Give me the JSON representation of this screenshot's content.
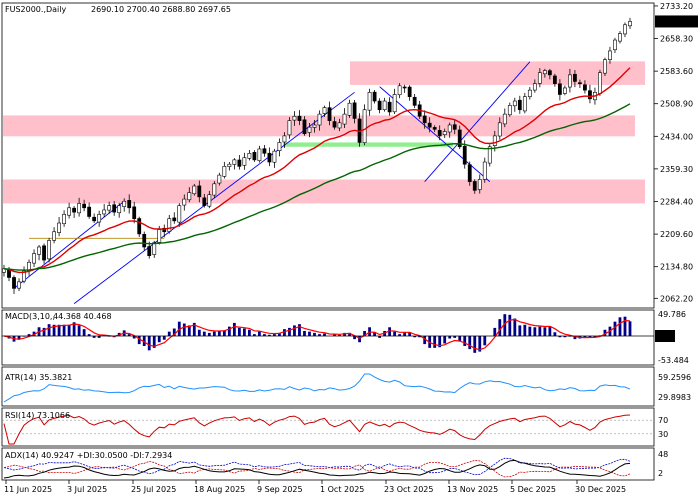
{
  "header": {
    "symbol": "FUS2000.,Daily",
    "ohlc": "2690.10 2700.40 2688.80 2697.65"
  },
  "colors": {
    "zone_pink": "#ffc0cb",
    "zone_green": "#90ee90",
    "ema_fast": "#e00000",
    "ema_slow": "#006400",
    "trendline": "#0000ff",
    "macd_hist": "#00008b",
    "macd_signal": "#ff0000",
    "atr": "#1e90ff",
    "rsi": "#cc0000",
    "adx": "#000000",
    "di_plus": "#0000cc",
    "di_minus": "#cc0000"
  },
  "chart_data": [
    {
      "type": "candlestick",
      "name": "FUS2000., Daily",
      "ylim": [
        2040,
        2740
      ],
      "last_price": "2697.65",
      "y_ticks": [
        "2733.20",
        "2658.30",
        "2583.60",
        "2508.90",
        "2434.00",
        "2359.30",
        "2284.40",
        "2209.60",
        "2134.80",
        "2062.20"
      ],
      "x_ticks": [
        "11 Jun 2025",
        "3 Jul 2025",
        "25 Jul 2025",
        "18 Aug 2025",
        "9 Sep 2025",
        "1 Oct 2025",
        "23 Oct 2025",
        "13 Nov 2025",
        "5 Dec 2025",
        "30 Dec 2025"
      ],
      "closes": [
        2130,
        2110,
        2085,
        2100,
        2125,
        2145,
        2165,
        2180,
        2150,
        2195,
        2215,
        2235,
        2255,
        2270,
        2260,
        2280,
        2270,
        2250,
        2240,
        2255,
        2265,
        2275,
        2260,
        2275,
        2285,
        2270,
        2245,
        2210,
        2180,
        2160,
        2190,
        2220,
        2215,
        2245,
        2240,
        2275,
        2290,
        2305,
        2320,
        2295,
        2275,
        2300,
        2325,
        2345,
        2365,
        2370,
        2380,
        2365,
        2385,
        2395,
        2380,
        2405,
        2395,
        2375,
        2400,
        2420,
        2435,
        2470,
        2480,
        2470,
        2440,
        2455,
        2460,
        2485,
        2500,
        2470,
        2455,
        2465,
        2485,
        2510,
        2475,
        2420,
        2495,
        2535,
        2515,
        2495,
        2515,
        2490,
        2530,
        2550,
        2545,
        2525,
        2505,
        2480,
        2465,
        2455,
        2450,
        2435,
        2445,
        2460,
        2450,
        2410,
        2370,
        2330,
        2310,
        2335,
        2375,
        2410,
        2435,
        2465,
        2485,
        2505,
        2515,
        2495,
        2525,
        2540,
        2555,
        2580,
        2585,
        2575,
        2555,
        2530,
        2545,
        2575,
        2560,
        2555,
        2540,
        2520,
        2535,
        2580,
        2610,
        2630,
        2655,
        2670,
        2690,
        2697.65
      ],
      "zones": [
        {
          "color": "pink",
          "from": 2552,
          "to": 2606
        },
        {
          "color": "pink",
          "from": 2434,
          "to": 2482
        },
        {
          "color": "green",
          "from": 2410,
          "to": 2420
        },
        {
          "color": "pink",
          "from": 2280,
          "to": 2335
        }
      ]
    },
    {
      "type": "macd",
      "label": "MACD(3,10,,",
      "values": "44.368 40.468",
      "y_ticks": [
        "49.786",
        "0.00",
        "-53.484"
      ]
    },
    {
      "type": "line",
      "label": "ATR(14) 35.3821",
      "y_ticks": [
        "59.2596",
        "29.8983"
      ]
    },
    {
      "type": "line",
      "label": "RSI(14) 73.1066",
      "y_ticks": [
        "70",
        "30"
      ]
    },
    {
      "type": "line",
      "label": "ADX(14) 40.9247 +DI:30.0500 -DI:7.2934",
      "y_ticks": [
        "48",
        "2"
      ]
    }
  ]
}
